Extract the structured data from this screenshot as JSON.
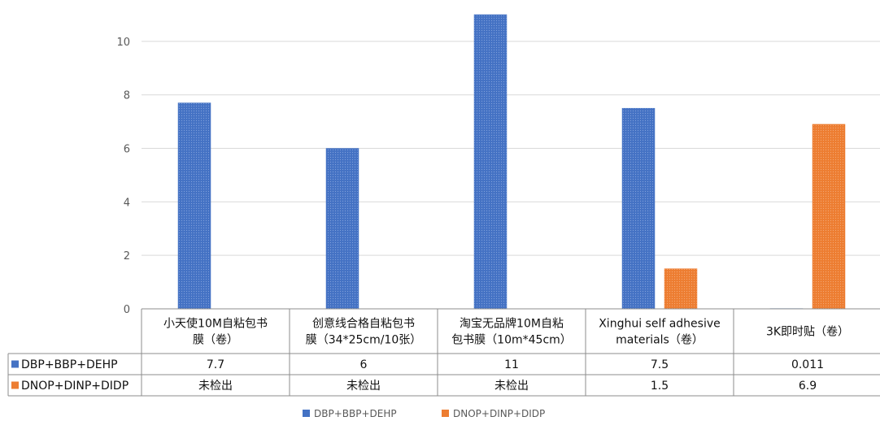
{
  "chart_data": {
    "type": "bar",
    "categories": [
      [
        "小天使10M自粘包书",
        "膜（卷）"
      ],
      [
        "创意线合格自粘包书",
        "膜（34*25cm/10张）"
      ],
      [
        "淘宝无品牌10M自粘",
        "包书膜（10m*45cm）"
      ],
      [
        "Xinghui self adhesive",
        "materials（卷）"
      ],
      [
        "3K即时贴（卷）"
      ]
    ],
    "ylim": [
      0,
      11
    ],
    "yticks": [
      0,
      2,
      4,
      6,
      8,
      10
    ],
    "grid": true,
    "legend_position": "bottom",
    "series": [
      {
        "name": "DBP+BBP+DEHP",
        "color": "#4472C4",
        "values": [
          7.7,
          6,
          11,
          7.5,
          0.011
        ],
        "labels": [
          "7.7",
          "6",
          "11",
          "7.5",
          "0.011"
        ]
      },
      {
        "name": "DNOP+DINP+DIDP",
        "color": "#ED7D31",
        "values": [
          0,
          0,
          0,
          1.5,
          6.9
        ],
        "labels": [
          "未检出",
          "未检出",
          "未检出",
          "1.5",
          "6.9"
        ]
      }
    ]
  }
}
